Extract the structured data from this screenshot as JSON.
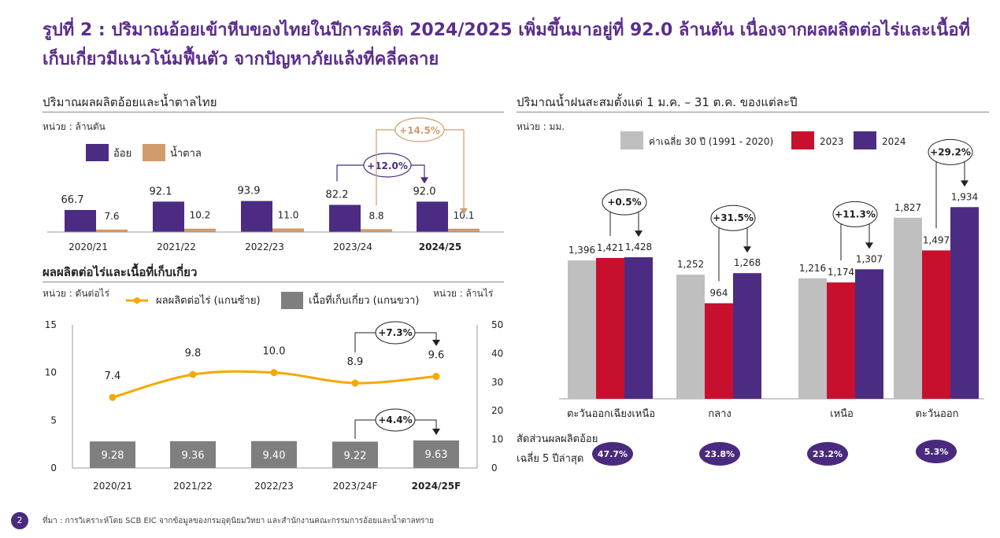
{
  "title": "รูปที่ 2 : ปริมาณอ้อยเข้าหีบของไทยในปีการผลิต 2024/2025 เพิ่มขึ้นมาอยู่ที่ 92.0 ล้านตัน เนื่องจากผลผลิตต่อไร่และเนื้อที่เก็บเกี่ยวมีแนวโน้มฟื้นตัว จากปัญหาภัยแล้งที่คลี่คลาย",
  "colors": {
    "title": "#5b2d8e",
    "cane": "#4b2c82",
    "sugar": "#d19b6e",
    "gray": "#7f7f7f",
    "line": "#f5a800",
    "avg": "#bfbfbf",
    "y2023": "#c8102e",
    "y2024": "#4b2c82"
  },
  "panel_cane": {
    "title": "ปริมาณผลผลิตอ้อยและน้ำตาลไทย",
    "unit": "หน่วย : ล้านตัน"
  },
  "panel_yield": {
    "title": "ผลผลิตต่อไร่และเนื้อที่เก็บเกี่ยว",
    "unit_left": "หน่วย : ตันต่อไร่",
    "unit_right": "หน่วย : ล้านไร่"
  },
  "panel_rain": {
    "title": "ปริมาณน้ำฝนสะสมตั้งแต่ 1 ม.ค. – 31 ต.ค. ของแต่ละปี",
    "unit": "หน่วย : มม.",
    "share_label": "สัดส่วนผลผลิตอ้อยเฉลี่ย 5 ปีล่าสุด",
    "shares": [
      "47.7%",
      "23.8%",
      "23.2%",
      "5.3%"
    ]
  },
  "chart_data": [
    {
      "type": "bar",
      "categories": [
        "2020/21",
        "2021/22",
        "2022/23",
        "2023/24",
        "2024/25"
      ],
      "series": [
        {
          "name": "อ้อย",
          "values": [
            66.7,
            92.1,
            93.9,
            82.2,
            92.0
          ]
        },
        {
          "name": "น้ำตาล",
          "values": [
            7.6,
            10.2,
            11.0,
            8.8,
            10.1
          ]
        }
      ],
      "value_labels": {
        "อ้อย": [
          "66.7",
          "92.1",
          "93.9",
          "82.2",
          "92.0"
        ],
        "น้ำตาล": [
          "7.6",
          "10.2",
          "11.0",
          "8.8",
          "10.1"
        ]
      },
      "annotations": [
        "+12.0%",
        "+14.5%"
      ],
      "legend": "top-left"
    },
    {
      "type": "bar",
      "categories": [
        "2020/21",
        "2021/22",
        "2022/23",
        "2023/24F",
        "2024/25F"
      ],
      "series": [
        {
          "name": "เนื้อที่เก็บเกี่ยว (แกนขวา)",
          "type": "bar",
          "axis": "right",
          "values": [
            9.28,
            9.36,
            9.4,
            9.22,
            9.63
          ]
        },
        {
          "name": "ผลผลิตต่อไร่ (แกนซ้าย)",
          "type": "line",
          "axis": "left",
          "values": [
            7.4,
            9.8,
            10.0,
            8.9,
            9.6
          ]
        }
      ],
      "value_labels": {
        "เนื้อที่เก็บเกี่ยว (แกนขวา)": [
          "9.28",
          "9.36",
          "9.40",
          "9.22",
          "9.63"
        ],
        "ผลผลิตต่อไร่ (แกนซ้าย)": [
          "7.4",
          "9.8",
          "10.0",
          "8.9",
          "9.6"
        ]
      },
      "ylim_left": [
        0,
        15
      ],
      "yticks_left": [
        "0",
        "5",
        "10",
        "15"
      ],
      "ylim_right": [
        0,
        50
      ],
      "yticks_right": [
        "0",
        "10",
        "20",
        "30",
        "40",
        "50"
      ],
      "annotations": [
        "+7.3%",
        "+4.4%"
      ],
      "legend": "top"
    },
    {
      "type": "bar",
      "categories": [
        "ตะวันออกเฉียงเหนือ",
        "กลาง",
        "เหนือ",
        "ตะวันออก"
      ],
      "series": [
        {
          "name": "ค่าเฉลี่ย 30 ปี (1991 - 2020)",
          "values": [
            1396,
            1252,
            1216,
            1827
          ]
        },
        {
          "name": "2023",
          "values": [
            1421,
            964,
            1174,
            1497
          ]
        },
        {
          "name": "2024",
          "values": [
            1428,
            1268,
            1307,
            1934
          ]
        }
      ],
      "value_labels": {
        "ค่าเฉลี่ย 30 ปี (1991 - 2020)": [
          "1,396",
          "1,252",
          "1,216",
          "1,827"
        ],
        "2023": [
          "1,421",
          "964",
          "1,174",
          "1,497"
        ],
        "2024": [
          "1,428",
          "1,268",
          "1,307",
          "1,934"
        ]
      },
      "annotations": [
        "+0.5%",
        "+31.5%",
        "+11.3%",
        "+29.2%"
      ],
      "legend": "top"
    }
  ],
  "footer": {
    "page": "2",
    "source": "ที่มา : การวิเคราะห์โดย SCB EIC จากข้อมูลของกรมอุตุนิยมวิทยา และสำนักงานคณะกรรมการอ้อยและน้ำตาลทราย"
  }
}
